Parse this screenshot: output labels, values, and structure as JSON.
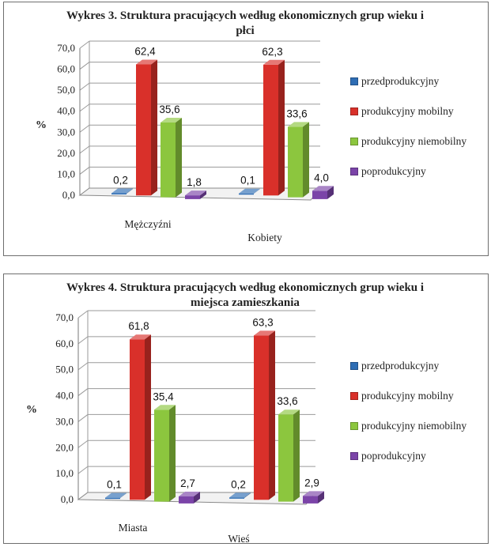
{
  "palette": {
    "przedprodukcyjny": "#2E6DB4",
    "produkcyjny mobilny": "#D9302A",
    "produkcyjny niemobilny": "#8CC63E",
    "poprodukcyjny": "#7B44A8"
  },
  "chart_data": [
    {
      "type": "bar",
      "title": "Wykres 3. Struktura pracujących według ekonomicznych grup wieku i płci",
      "ylabel": "%",
      "xlabel": "",
      "ylim": [
        0,
        70
      ],
      "yticks": [
        "0,0",
        "10,0",
        "20,0",
        "30,0",
        "40,0",
        "50,0",
        "60,0",
        "70,0"
      ],
      "grid": true,
      "legend_position": "right",
      "categories": [
        "Mężczyźni",
        "Kobiety"
      ],
      "series": [
        {
          "name": "przedprodukcyjny",
          "values": [
            0.2,
            0.1
          ],
          "labels": [
            "0,2",
            "0,1"
          ]
        },
        {
          "name": "produkcyjny mobilny",
          "values": [
            62.4,
            62.3
          ],
          "labels": [
            "62,4",
            "62,3"
          ]
        },
        {
          "name": "produkcyjny niemobilny",
          "values": [
            35.6,
            33.6
          ],
          "labels": [
            "35,6",
            "33,6"
          ]
        },
        {
          "name": "poprodukcyjny",
          "values": [
            1.8,
            4.0
          ],
          "labels": [
            "1,8",
            "4,0"
          ]
        }
      ]
    },
    {
      "type": "bar",
      "title": "Wykres 4. Struktura pracujących według ekonomicznych grup wieku i miejsca zamieszkania",
      "ylabel": "%",
      "xlabel": "",
      "ylim": [
        0,
        70
      ],
      "yticks": [
        "0,0",
        "10,0",
        "20,0",
        "30,0",
        "40,0",
        "50,0",
        "60,0",
        "70,0"
      ],
      "grid": true,
      "legend_position": "right",
      "categories": [
        "Miasta",
        "Wieś"
      ],
      "series": [
        {
          "name": "przedprodukcyjny",
          "values": [
            0.1,
            0.2
          ],
          "labels": [
            "0,1",
            "0,2"
          ]
        },
        {
          "name": "produkcyjny mobilny",
          "values": [
            61.8,
            63.3
          ],
          "labels": [
            "61,8",
            "63,3"
          ]
        },
        {
          "name": "produkcyjny niemobilny",
          "values": [
            35.4,
            33.6
          ],
          "labels": [
            "35,4",
            "33,6"
          ]
        },
        {
          "name": "poprodukcyjny",
          "values": [
            2.7,
            2.9
          ],
          "labels": [
            "2,7",
            "2,9"
          ]
        }
      ]
    }
  ]
}
